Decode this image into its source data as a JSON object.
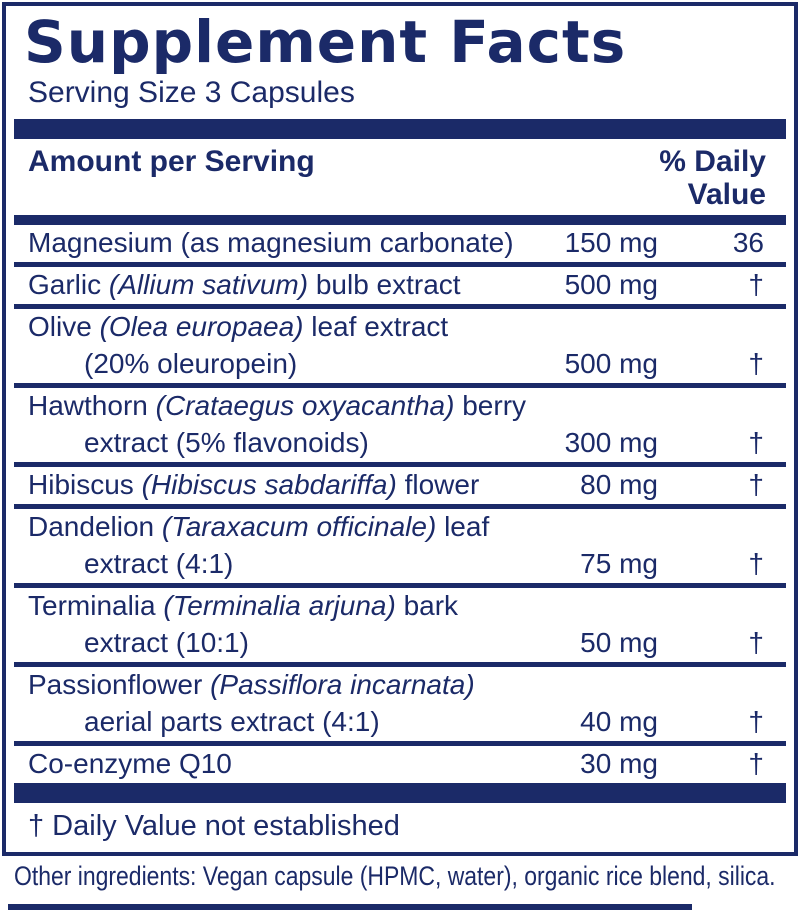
{
  "colors": {
    "navy": "#1b2a68",
    "background": "#ffffff"
  },
  "label": {
    "title": "Supplement Facts",
    "serving_size": "Serving Size 3 Capsules",
    "header": {
      "amount": "Amount per Serving",
      "dv_line1": "% Daily",
      "dv_line2": "Value"
    },
    "rows": [
      {
        "prefix": "Magnesium (as magnesium carbonate)",
        "latin": "",
        "suffix": "",
        "amount": "150 mg",
        "dv": "36"
      },
      {
        "prefix": "Garlic ",
        "latin": "(Allium sativum)",
        "suffix": " bulb extract",
        "amount": "500 mg",
        "dv": "†"
      },
      {
        "prefix": "Olive ",
        "latin": "(Olea europaea)",
        "suffix": " leaf extract",
        "line2": "(20% oleuropein)",
        "amount": "500 mg",
        "dv": "†"
      },
      {
        "prefix": "Hawthorn ",
        "latin": "(Crataegus oxyacantha)",
        "suffix": " berry",
        "line2": "extract (5% flavonoids)",
        "amount": "300 mg",
        "dv": "†"
      },
      {
        "prefix": "Hibiscus ",
        "latin": "(Hibiscus sabdariffa)",
        "suffix": " flower",
        "amount": "80 mg",
        "dv": "†"
      },
      {
        "prefix": "Dandelion ",
        "latin": "(Taraxacum officinale)",
        "suffix": " leaf",
        "line2": "extract (4:1)",
        "amount": "75 mg",
        "dv": "†"
      },
      {
        "prefix": "Terminalia ",
        "latin": "(Terminalia arjuna)",
        "suffix": " bark",
        "line2": "extract (10:1)",
        "amount": "50 mg",
        "dv": "†"
      },
      {
        "prefix": "Passionflower ",
        "latin": "(Passiflora incarnata)",
        "suffix": "",
        "line2": "aerial parts extract (4:1)",
        "amount": "40 mg",
        "dv": "†"
      },
      {
        "prefix": "Co-enzyme Q10",
        "latin": "",
        "suffix": "",
        "amount": "30 mg",
        "dv": "†"
      }
    ],
    "footnote": "† Daily Value not established",
    "other_ingredients": "Other ingredients: Vegan capsule (HPMC, water), organic rice blend, silica."
  }
}
